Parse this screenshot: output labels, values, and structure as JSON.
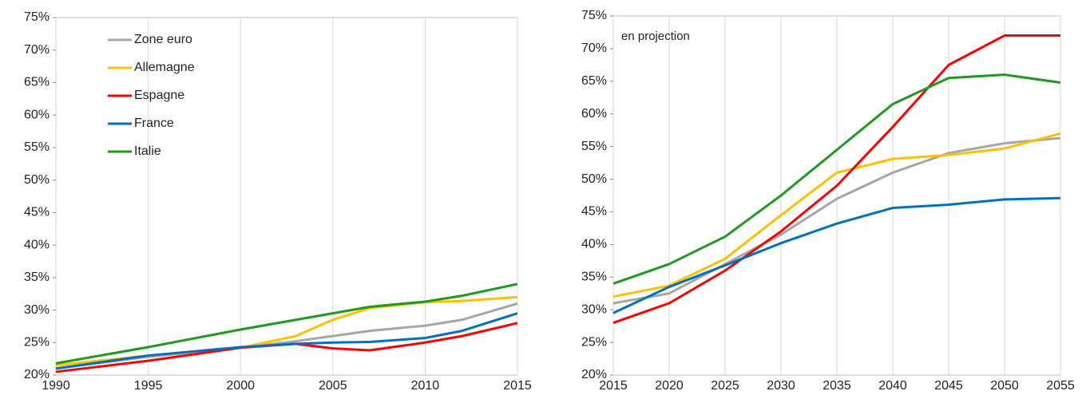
{
  "chart_data": [
    {
      "type": "line",
      "x": [
        1990,
        1995,
        2000,
        2003,
        2005,
        2007,
        2010,
        2012,
        2015
      ],
      "series": [
        {
          "name": "Zone euro",
          "color": "#a6a6a6",
          "values": [
            21,
            22.8,
            24.2,
            25.2,
            26,
            26.8,
            27.6,
            28.5,
            31
          ]
        },
        {
          "name": "Allemagne",
          "color": "#ffc000",
          "values": [
            21.5,
            23,
            24.2,
            26,
            28.5,
            30.3,
            31.2,
            31.4,
            32
          ]
        },
        {
          "name": "Espagne",
          "color": "#ff0000",
          "values": [
            20.5,
            22.2,
            24.2,
            24.8,
            24.1,
            23.8,
            25,
            26,
            28
          ]
        },
        {
          "name": "France",
          "color": "#0070c0",
          "values": [
            21,
            23,
            24.3,
            24.8,
            25,
            25.1,
            25.7,
            26.8,
            29.5
          ]
        },
        {
          "name": "Italie",
          "color": "#1e9a1e",
          "values": [
            21.8,
            24.3,
            27,
            28.5,
            29.5,
            30.5,
            31.3,
            32.2,
            34
          ]
        }
      ],
      "xlim": [
        1990,
        2015
      ],
      "xticks": [
        1990,
        1995,
        2000,
        2005,
        2010,
        2015
      ],
      "ylim": [
        20,
        75
      ],
      "yticks": [
        {
          "value": 20,
          "label": "20%"
        },
        {
          "value": 25,
          "label": "25%"
        },
        {
          "value": 30,
          "label": "30%"
        },
        {
          "value": 35,
          "label": "35%"
        },
        {
          "value": 40,
          "label": "40%"
        },
        {
          "value": 45,
          "label": "45%"
        },
        {
          "value": 50,
          "label": "50%"
        },
        {
          "value": 55,
          "label": "55%"
        },
        {
          "value": 60,
          "label": "60%"
        },
        {
          "value": 65,
          "label": "65%"
        },
        {
          "value": 70,
          "label": "70%"
        },
        {
          "value": 75,
          "label": "75%"
        }
      ],
      "legend": "top-left",
      "grid": "x"
    },
    {
      "type": "line",
      "annotation": "en projection",
      "x": [
        2015,
        2020,
        2025,
        2030,
        2035,
        2040,
        2045,
        2050,
        2055
      ],
      "series": [
        {
          "color": "#a6a6a6",
          "values": [
            31,
            32.5,
            37,
            41.5,
            47,
            51,
            54,
            55.5,
            56.3
          ]
        },
        {
          "color": "#ffc000",
          "values": [
            32,
            33.7,
            37.8,
            44.5,
            51,
            53.1,
            53.7,
            54.7,
            57
          ]
        },
        {
          "color": "#ff0000",
          "values": [
            28,
            31,
            36,
            42,
            49,
            58,
            67.5,
            72,
            72
          ]
        },
        {
          "color": "#0070c0",
          "values": [
            29.5,
            33.5,
            36.8,
            40.2,
            43.2,
            45.6,
            46.1,
            46.9,
            47.1
          ]
        },
        {
          "color": "#1e9a1e",
          "values": [
            34,
            37,
            41.2,
            47.5,
            54.5,
            61.5,
            65.5,
            66,
            64.8
          ]
        }
      ],
      "xlim": [
        2015,
        2055
      ],
      "xticks": [
        2015,
        2020,
        2025,
        2030,
        2035,
        2040,
        2045,
        2050,
        2055
      ],
      "ylim": [
        20,
        75
      ],
      "yticks": [
        {
          "value": 20,
          "label": "20%"
        },
        {
          "value": 25,
          "label": "25%"
        },
        {
          "value": 30,
          "label": "30%"
        },
        {
          "value": 35,
          "label": "35%"
        },
        {
          "value": 40,
          "label": "40%"
        },
        {
          "value": 45,
          "label": "45%"
        },
        {
          "value": 50,
          "label": "50%"
        },
        {
          "value": 55,
          "label": "55%"
        },
        {
          "value": 60,
          "label": "60%"
        },
        {
          "value": 65,
          "label": "65%"
        },
        {
          "value": 70,
          "label": "70%"
        },
        {
          "value": 75,
          "label": "75%"
        }
      ],
      "grid": "x"
    }
  ]
}
